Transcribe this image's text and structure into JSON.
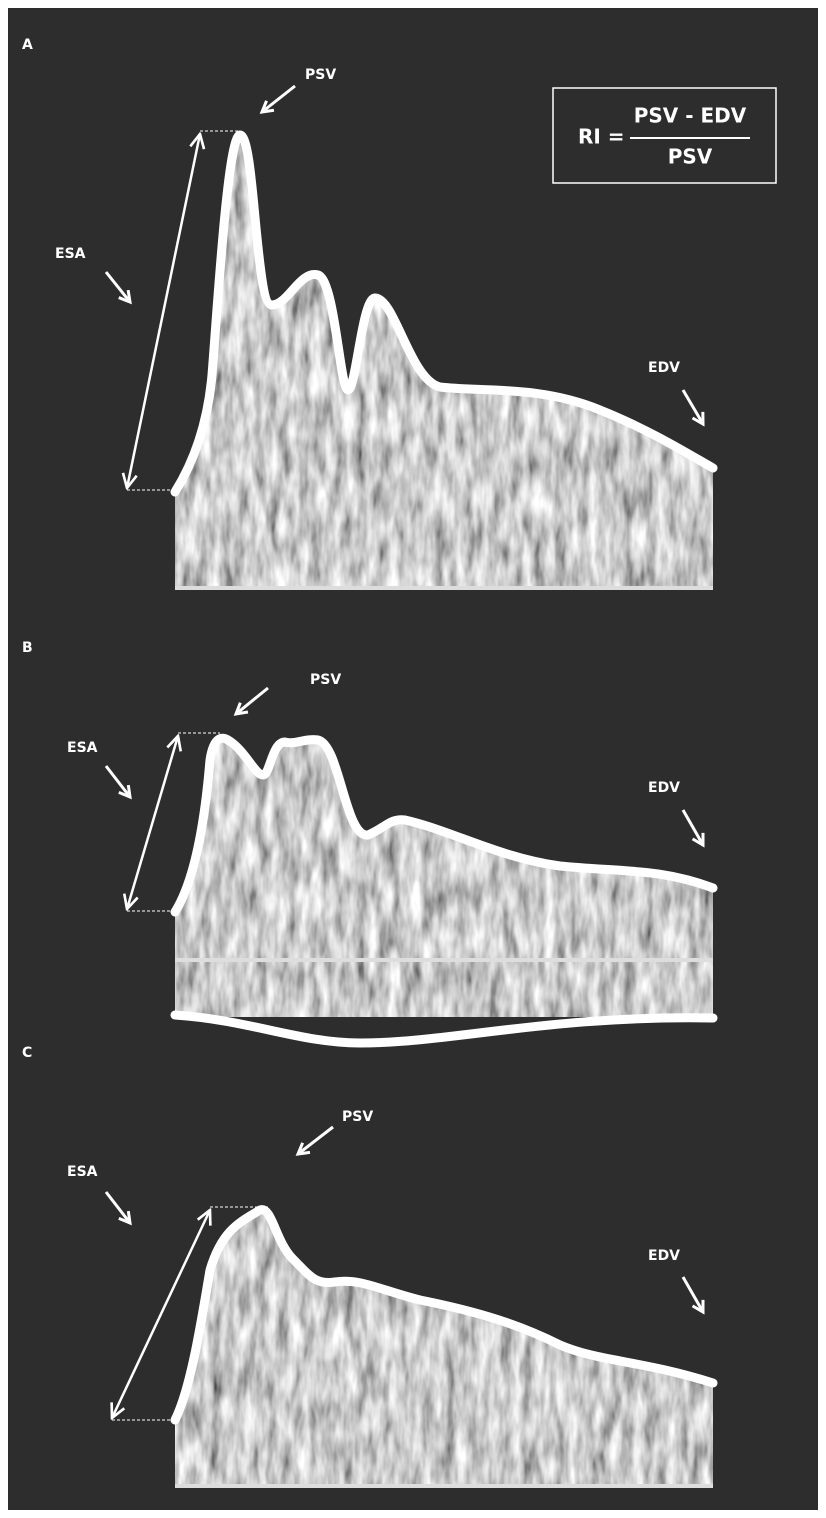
{
  "formula": {
    "lhs": "RI =",
    "numerator": "PSV - EDV",
    "denominator": "PSV"
  },
  "panels": [
    {
      "label": "A",
      "psv": "PSV",
      "edv": "EDV",
      "esa": "ESA"
    },
    {
      "label": "B",
      "psv": "PSV",
      "edv": "EDV",
      "esa": "ESA"
    },
    {
      "label": "C",
      "psv": "PSV",
      "edv": "EDV",
      "esa": "ESA"
    }
  ]
}
